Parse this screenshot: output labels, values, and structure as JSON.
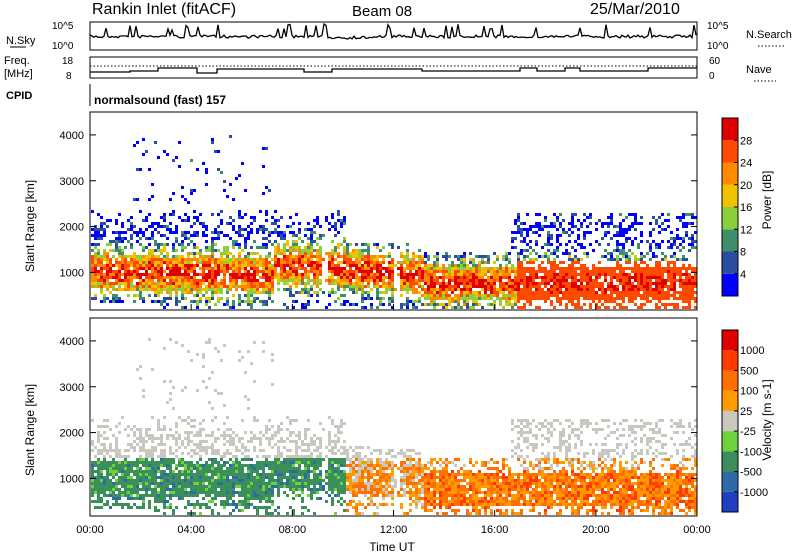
{
  "header": {
    "station": "Rankin Inlet (fitACF)",
    "beam": "Beam 08",
    "date": "25/Mar/2010"
  },
  "noise_panel": {
    "left_label": "N.Sky",
    "right_label": "N.Search",
    "left_ticks": [
      "10^5",
      "10^0"
    ],
    "right_ticks": [
      "10^5",
      "10^0"
    ]
  },
  "freq_panel": {
    "left_label_line1": "Freq.",
    "left_label_line2": "[MHz]",
    "right_label": "Nave",
    "left_ticks": [
      "18",
      "8"
    ],
    "right_ticks": [
      "60",
      "0"
    ],
    "cpid_label": "CPID",
    "cpid_value": "normalsound (fast) 157"
  },
  "chart_data": [
    {
      "type": "heatmap",
      "title": "Power",
      "ylabel": "Slant Range [km]",
      "xlabel": "",
      "yticks": [
        "1000",
        "2000",
        "3000",
        "4000"
      ],
      "ylim": [
        180,
        4500
      ],
      "colorbar": {
        "label": "Power [dB]",
        "ticks": [
          "4",
          "8",
          "12",
          "16",
          "20",
          "24",
          "28"
        ],
        "colors": [
          "#0000ff",
          "#2a4fa0",
          "#3f8f6a",
          "#8ccf3c",
          "#f2c200",
          "#ff8a00",
          "#ff4b00",
          "#e00000"
        ]
      }
    },
    {
      "type": "heatmap",
      "title": "Velocity",
      "ylabel": "Slant Range [km]",
      "xlabel": "Time UT",
      "yticks": [
        "1000",
        "2000",
        "3000",
        "4000"
      ],
      "xticks": [
        "00:00",
        "04:00",
        "08:00",
        "12:00",
        "16:00",
        "20:00",
        "00:00"
      ],
      "ylim": [
        180,
        4500
      ],
      "colorbar": {
        "label": "Velocity [m s-1]",
        "ticks": [
          "1000",
          "500",
          "100",
          "25",
          "-25",
          "-100",
          "-500",
          "-1000"
        ],
        "colors": [
          "#1f3fbf",
          "#2c6aa8",
          "#3b8f5a",
          "#6fd23c",
          "#c8c8c0",
          "#ff9a00",
          "#ff7000",
          "#ff3a00",
          "#e00000"
        ]
      }
    }
  ]
}
